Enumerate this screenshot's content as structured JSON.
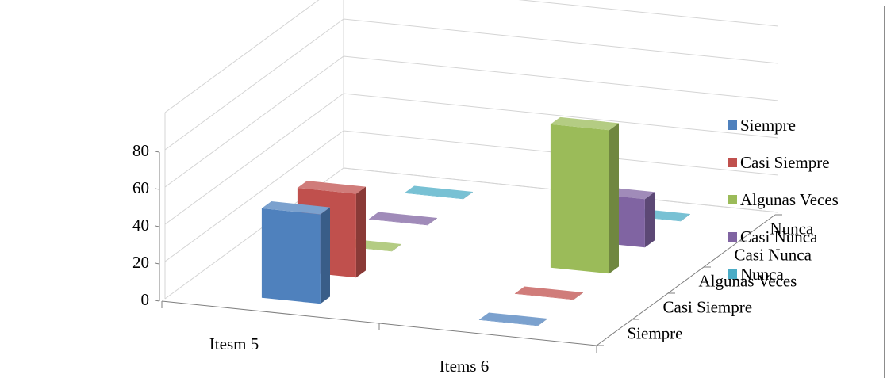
{
  "chart_data": {
    "type": "bar",
    "subtype": "3d-column",
    "title": "",
    "categories": [
      "Itesm 5",
      "Items 6"
    ],
    "depth_axis": [
      "Siempre",
      "Casi Siempre",
      "Algunas Veces",
      "Casi Nunca",
      "Nunca"
    ],
    "series": [
      {
        "name": "Siempre",
        "color": "#4f81bd",
        "values": [
          48,
          0
        ]
      },
      {
        "name": "Casi Siempre",
        "color": "#c0504d",
        "values": [
          45,
          0
        ]
      },
      {
        "name": "Algunas Veces",
        "color": "#9bbb59",
        "values": [
          0,
          77
        ]
      },
      {
        "name": "Casi Nunca",
        "color": "#8064a2",
        "values": [
          0,
          26
        ]
      },
      {
        "name": "Nunca",
        "color": "#4bacc6",
        "values": [
          0,
          0
        ]
      }
    ],
    "yticks": [
      "0",
      "20",
      "40",
      "60",
      "80"
    ],
    "ylim": [
      0,
      100
    ],
    "grid": true,
    "legend_position": "right"
  }
}
